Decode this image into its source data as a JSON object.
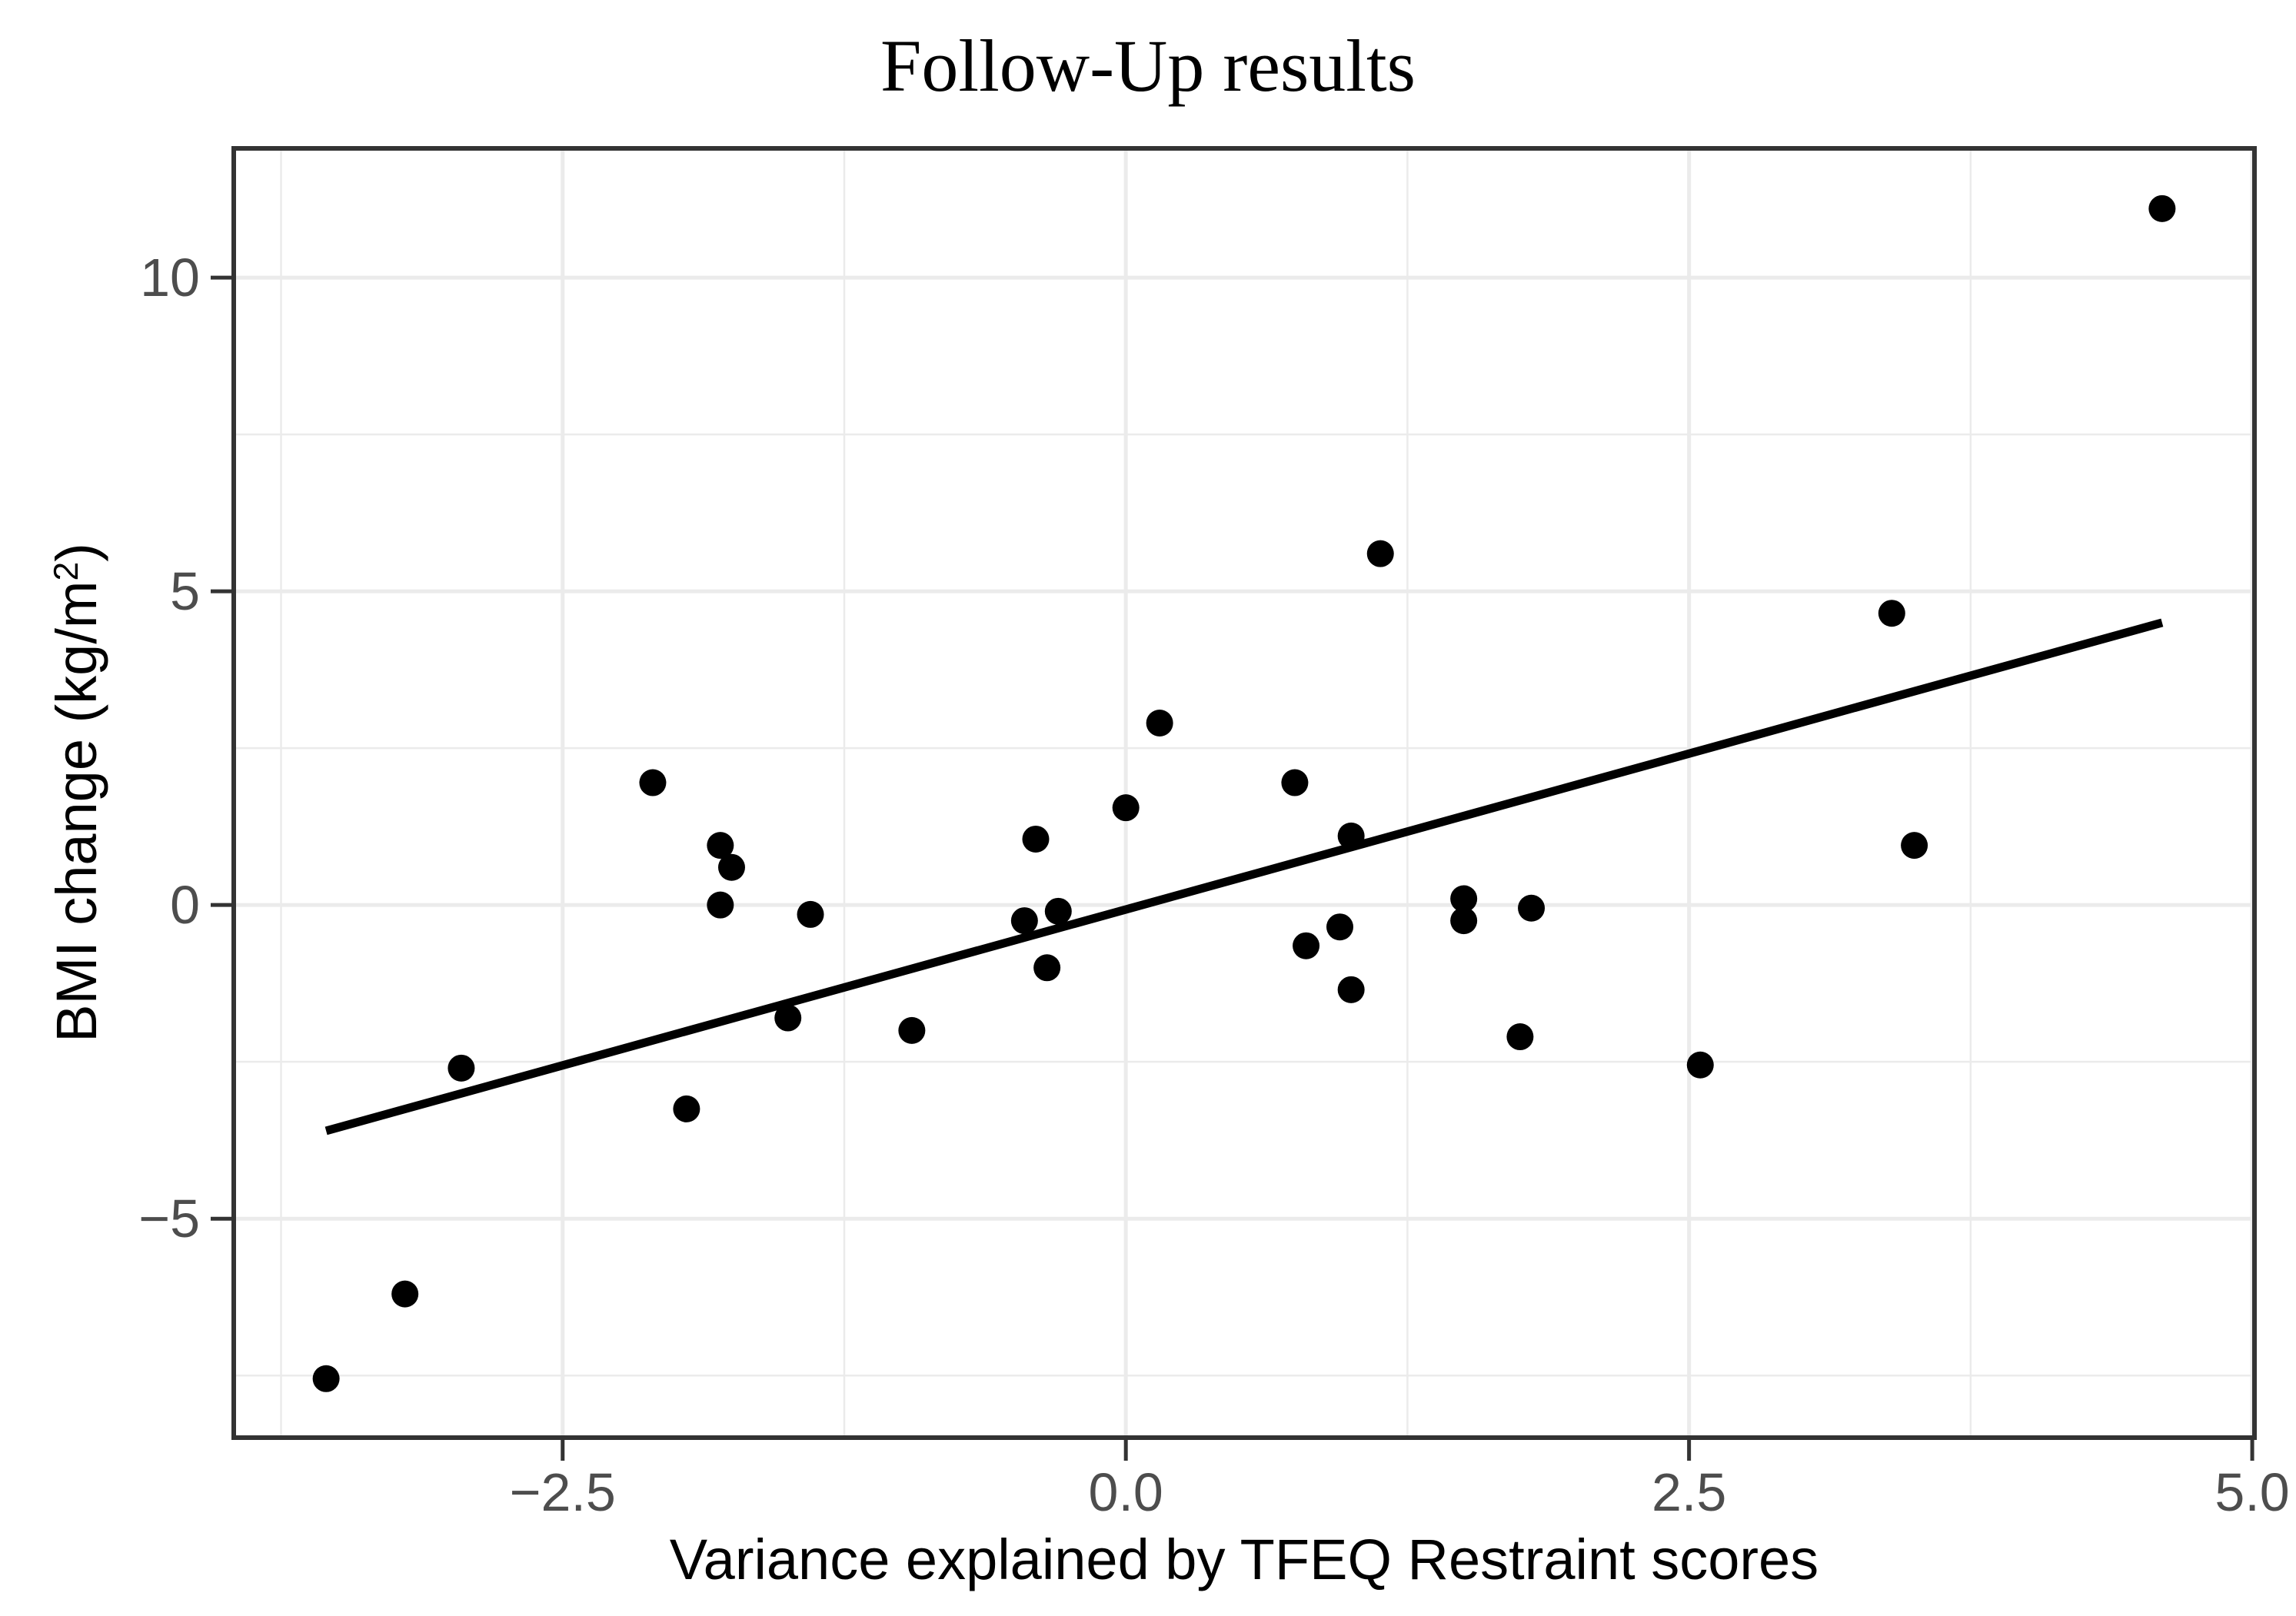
{
  "title": "Follow-Up results",
  "chart_data": {
    "type": "scatter",
    "title": "Follow-Up results",
    "xlabel": "Variance explained by TFEQ Restraint scores",
    "ylabel": "BMI change (kg/m2)",
    "ylabel_parts": {
      "prefix": "BMI change (kg/m",
      "sup": "2",
      "suffix": ")"
    },
    "xlim": [
      -3.96,
      5.01
    ],
    "ylim": [
      -8.49,
      12.06
    ],
    "x_ticks": {
      "values": [
        -2.5,
        0,
        2.5,
        5
      ],
      "labels": [
        "−2.5",
        "0.0",
        "2.5",
        "5.0"
      ]
    },
    "y_ticks": {
      "values": [
        -5,
        0,
        5,
        10
      ],
      "labels": [
        "−5",
        "0",
        "5",
        "10"
      ]
    },
    "x_minor": [
      -3.75,
      -1.25,
      1.25,
      3.75
    ],
    "y_minor": [
      -7.5,
      -2.5,
      2.5,
      7.5
    ],
    "grid": "on",
    "legend": "none",
    "points": [
      [
        -3.55,
        -7.55
      ],
      [
        -3.2,
        -6.2
      ],
      [
        -2.95,
        -2.6
      ],
      [
        -2.1,
        1.95
      ],
      [
        -1.95,
        -3.25
      ],
      [
        -1.8,
        0.95
      ],
      [
        -1.8,
        0.0
      ],
      [
        -1.75,
        0.6
      ],
      [
        -1.5,
        -1.8
      ],
      [
        -1.4,
        -0.15
      ],
      [
        -0.95,
        -2.0
      ],
      [
        -0.45,
        -0.25
      ],
      [
        -0.4,
        1.05
      ],
      [
        -0.35,
        -1.0
      ],
      [
        -0.3,
        -0.1
      ],
      [
        0.0,
        1.55
      ],
      [
        0.15,
        2.9
      ],
      [
        0.75,
        1.95
      ],
      [
        0.8,
        -0.65
      ],
      [
        0.95,
        -0.35
      ],
      [
        1.0,
        1.1
      ],
      [
        1.0,
        -1.35
      ],
      [
        1.13,
        5.6
      ],
      [
        1.5,
        0.1
      ],
      [
        1.5,
        -0.25
      ],
      [
        1.75,
        -2.1
      ],
      [
        1.8,
        -0.05
      ],
      [
        2.55,
        -2.55
      ],
      [
        3.4,
        4.65
      ],
      [
        3.5,
        0.95
      ],
      [
        4.6,
        11.1
      ]
    ],
    "trend_line": {
      "x1": -3.55,
      "y1": -3.6,
      "x2": 4.6,
      "y2": 4.5
    },
    "colors": {
      "point": "#000000",
      "line": "#000000",
      "grid_major": "#ebebeb",
      "grid_minor": "#ebebeb",
      "panel_border": "#333333",
      "tick_mark": "#333333",
      "tick_text": "#4d4d4d",
      "axis_title": "#000000",
      "background": "#ffffff"
    }
  }
}
